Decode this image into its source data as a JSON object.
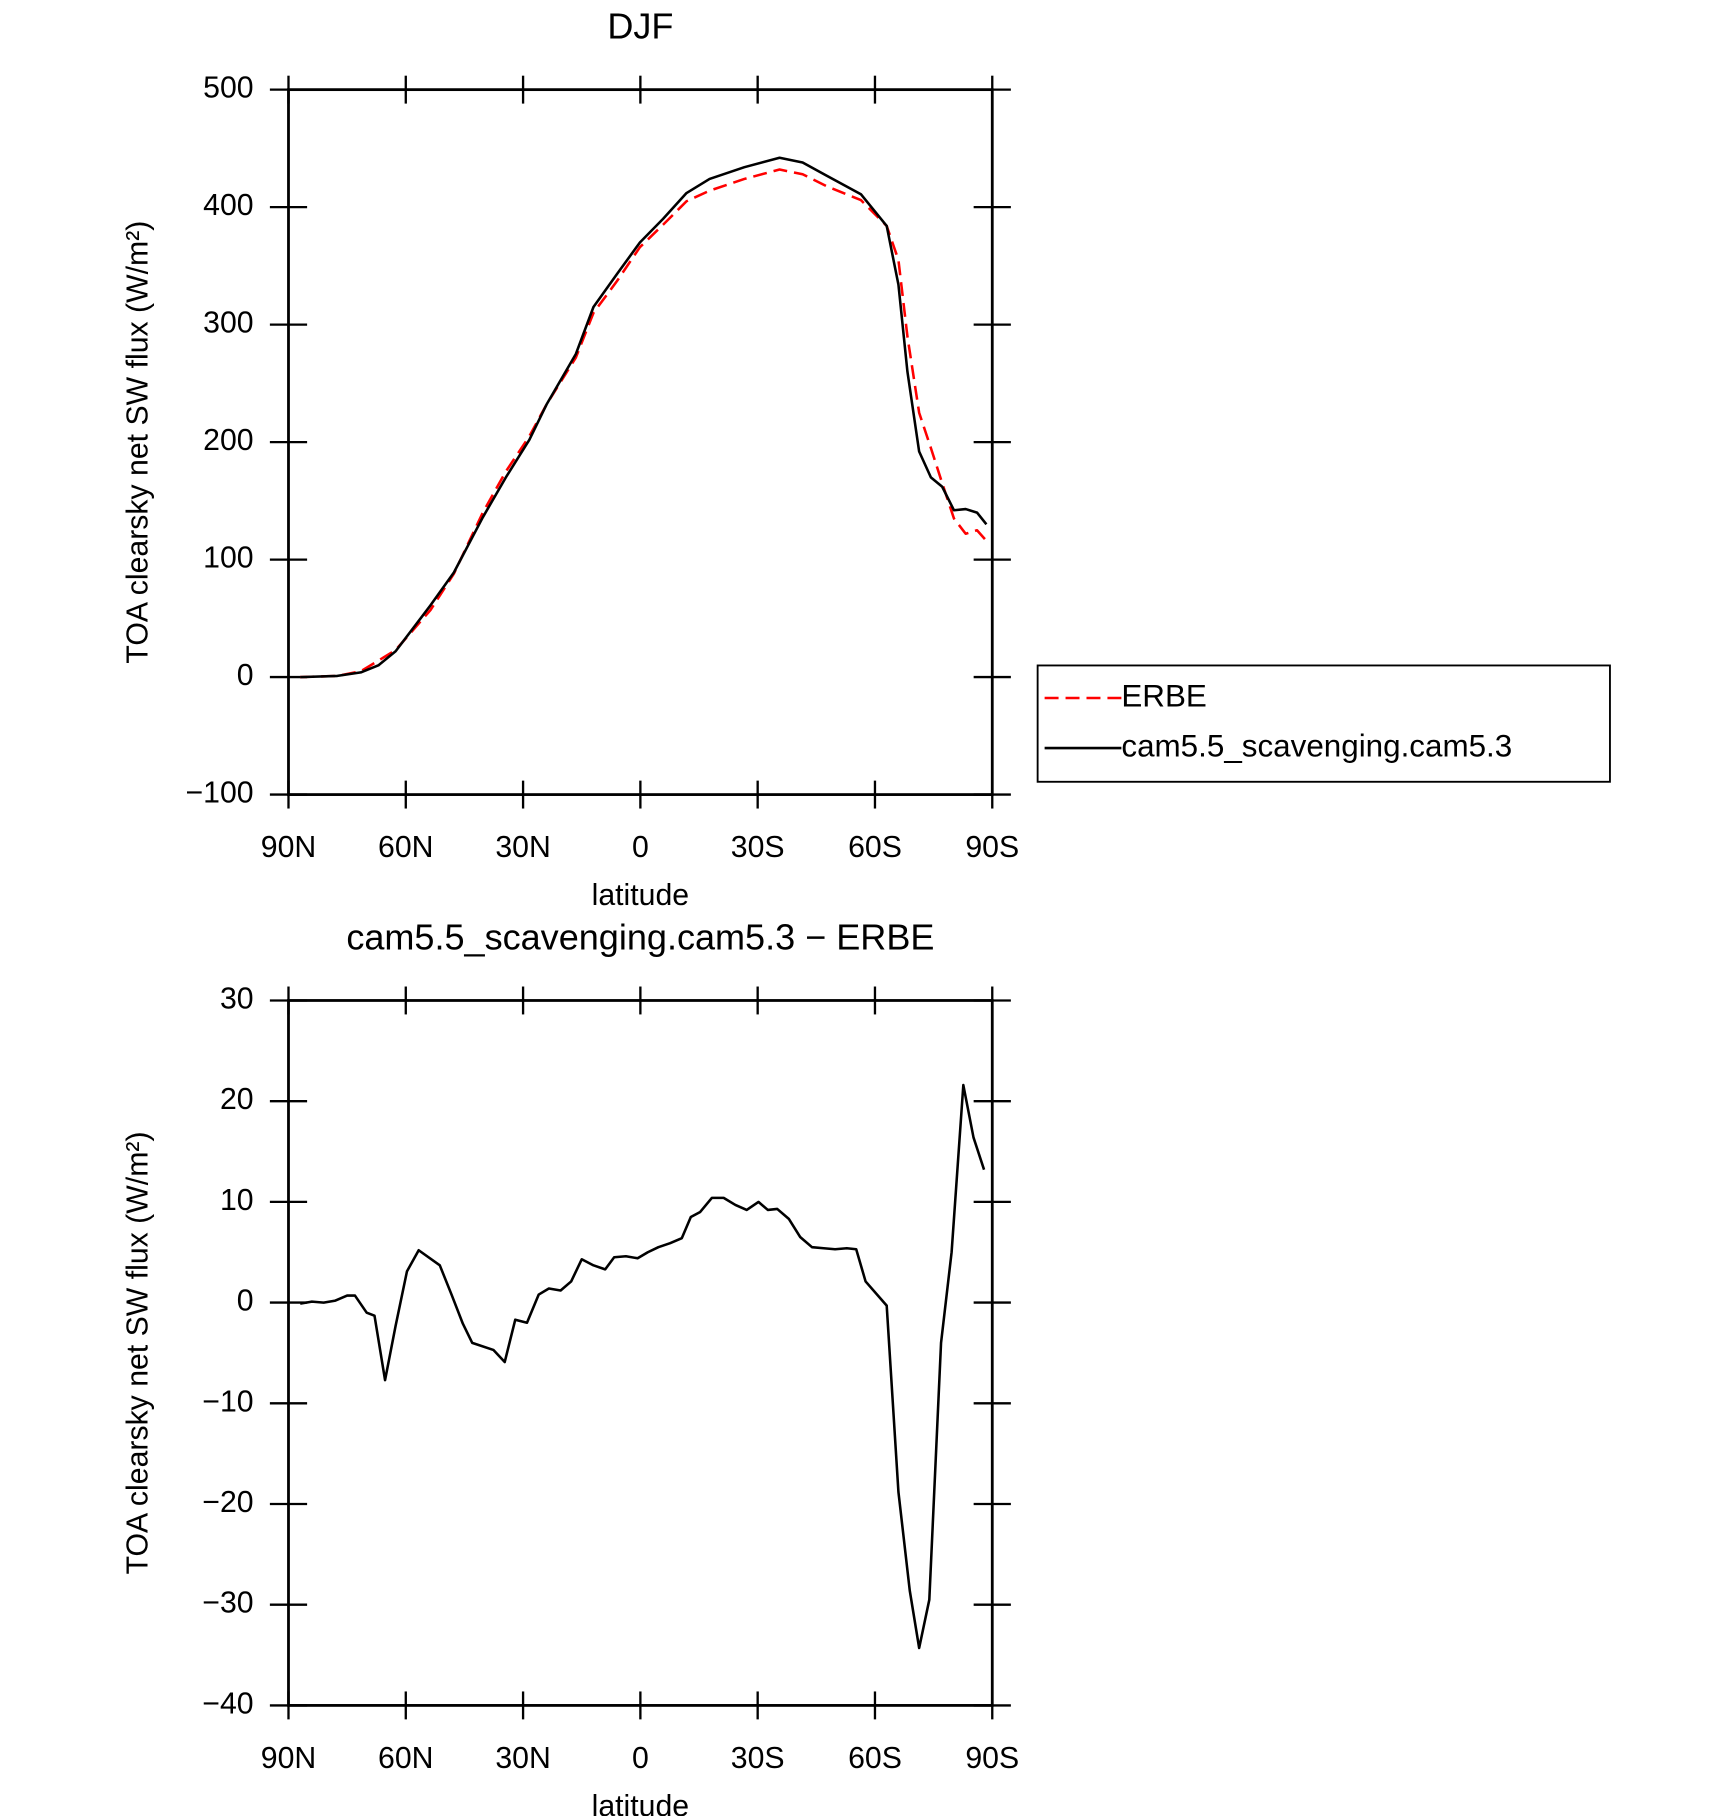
{
  "chart_data": [
    {
      "type": "line",
      "title": "DJF",
      "xlabel": "latitude",
      "ylabel": "TOA clearsky net SW flux (W/m²)",
      "x": [
        87,
        77.5,
        71.5,
        67,
        62.6,
        53.7,
        47.7,
        40.3,
        34.4,
        28.4,
        24,
        16.5,
        12,
        6,
        0.1,
        -5.8,
        -11.8,
        -17.7,
        -26.6,
        -35.6,
        -41.5,
        -47.5,
        -56.4,
        -63,
        -66,
        -68.3,
        -71.3,
        -74.3,
        -77.2,
        -80.2,
        -83.2,
        -86.1,
        -88.5
      ],
      "series": [
        {
          "name": "ERBE",
          "color": "#ff0000",
          "dashed": true,
          "values": [
            0,
            1,
            5,
            14,
            23,
            57,
            88,
            140,
            175,
            205,
            232,
            272,
            310,
            337,
            366,
            385,
            405,
            414,
            424,
            432,
            428,
            418,
            406,
            384,
            355,
            290,
            225,
            195,
            165,
            135,
            122,
            125,
            116
          ]
        },
        {
          "name": "cam5.5_scavenging.cam5.3",
          "color": "#000000",
          "dashed": false,
          "values": [
            0,
            1,
            4,
            10,
            22,
            61,
            89,
            136,
            170,
            202,
            232,
            275,
            315,
            343,
            370,
            390,
            412,
            424,
            434,
            442,
            438,
            427,
            411,
            384,
            334,
            260,
            192,
            170,
            162,
            142,
            143,
            140,
            130
          ]
        }
      ],
      "xlim": [
        90,
        -90
      ],
      "xticks": [
        {
          "value": 90,
          "label": "90N"
        },
        {
          "value": 60,
          "label": "60N"
        },
        {
          "value": 30,
          "label": "30N"
        },
        0,
        {
          "value": -30,
          "label": "30S"
        },
        {
          "value": -60,
          "label": "60S"
        },
        {
          "value": -90,
          "label": "90S"
        }
      ],
      "ylim": [
        -100,
        500
      ],
      "yticks": [
        {
          "value": -100,
          "label": "−100"
        },
        0,
        100,
        200,
        300,
        400,
        500
      ],
      "legend": "right"
    },
    {
      "type": "line",
      "title": "cam5.5_scavenging.cam5.3 − ERBE",
      "xlabel": "latitude",
      "ylabel": "TOA clearsky net SW flux (W/m²)",
      "x": [
        87,
        84,
        81,
        78,
        75,
        73,
        70,
        68,
        65.3,
        62.6,
        59.7,
        56.7,
        51.3,
        48.3,
        45.4,
        43,
        37.6,
        34.7,
        32,
        29,
        26,
        23.4,
        20.4,
        17.7,
        15,
        12,
        9,
        6.7,
        3.7,
        0.7,
        -1.9,
        -4.6,
        -7.6,
        -10.6,
        -12.9,
        -15.3,
        -18.3,
        -21.3,
        -24.3,
        -27.2,
        -30.2,
        -32.6,
        -35,
        -38,
        -40.9,
        -43.9,
        -46.9,
        -49.8,
        -52.8,
        -55.2,
        -57.6,
        -63,
        -66,
        -68.9,
        -71.3,
        -73.9,
        -76.9,
        -79.6,
        -82.6,
        -85.2,
        -87.9
      ],
      "values": [
        -0.1,
        0.1,
        0,
        0.2,
        0.7,
        0.7,
        -1,
        -1.3,
        -7.7,
        -2.3,
        3.1,
        5.2,
        3.7,
        0.8,
        -2.1,
        -4,
        -4.7,
        -5.9,
        -1.7,
        -2,
        0.8,
        1.4,
        1.2,
        2.1,
        4.3,
        3.7,
        3.3,
        4.5,
        4.6,
        4.4,
        5,
        5.5,
        5.9,
        6.4,
        8.5,
        9,
        10.4,
        10.4,
        9.7,
        9.2,
        10,
        9.2,
        9.3,
        8.3,
        6.5,
        5.5,
        5.4,
        5.3,
        5.4,
        5.3,
        2.1,
        -0.3,
        -18.8,
        -28.6,
        -34.3,
        -29.5,
        -4,
        5,
        21.6,
        16.4,
        13.2
      ],
      "color": "#000000",
      "xlim": [
        90,
        -90
      ],
      "xticks": [
        {
          "value": 90,
          "label": "90N"
        },
        {
          "value": 60,
          "label": "60N"
        },
        {
          "value": 30,
          "label": "30N"
        },
        0,
        {
          "value": -30,
          "label": "30S"
        },
        {
          "value": -60,
          "label": "60S"
        },
        {
          "value": -90,
          "label": "90S"
        }
      ],
      "ylim": [
        -40,
        30
      ],
      "yticks": [
        {
          "value": -40,
          "label": "−40"
        },
        {
          "value": -30,
          "label": "−30"
        },
        {
          "value": -20,
          "label": "−20"
        },
        {
          "value": -10,
          "label": "−10"
        },
        0,
        10,
        20,
        30
      ]
    }
  ]
}
